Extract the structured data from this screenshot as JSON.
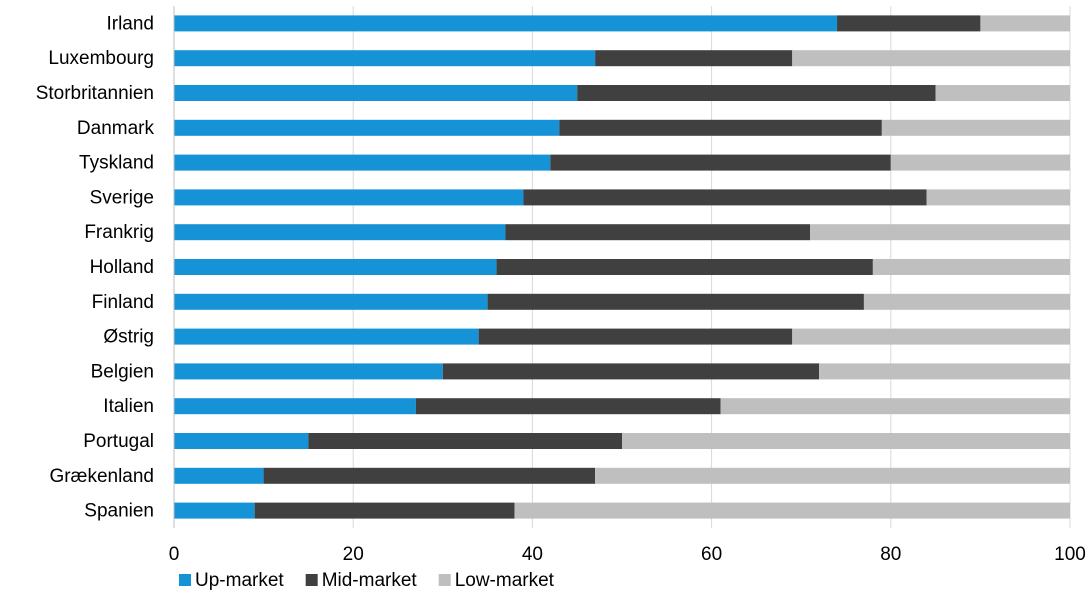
{
  "chart_data": {
    "type": "bar",
    "orientation": "horizontal",
    "stacked": true,
    "title": "",
    "xlabel": "",
    "ylabel": "",
    "xlim": [
      0,
      100
    ],
    "xticks": [
      0,
      20,
      40,
      60,
      80,
      100
    ],
    "grid": "vertical",
    "legend_position": "bottom",
    "categories": [
      "Irland",
      "Luxembourg",
      "Storbritannien",
      "Danmark",
      "Tyskland",
      "Sverige",
      "Frankrig",
      "Holland",
      "Finland",
      "Østrig",
      "Belgien",
      "Italien",
      "Portugal",
      "Grækenland",
      "Spanien"
    ],
    "series": [
      {
        "name": "Up-market",
        "color": "#1593d6",
        "values": [
          74,
          47,
          45,
          43,
          42,
          39,
          37,
          36,
          35,
          34,
          30,
          27,
          15,
          10,
          9
        ]
      },
      {
        "name": "Mid-market",
        "color": "#404040",
        "values": [
          16,
          22,
          40,
          36,
          38,
          45,
          34,
          42,
          42,
          35,
          42,
          34,
          35,
          37,
          29
        ]
      },
      {
        "name": "Low-market",
        "color": "#bfbfbf",
        "values": [
          10,
          31,
          15,
          21,
          20,
          16,
          29,
          22,
          23,
          31,
          28,
          39,
          50,
          53,
          62
        ]
      }
    ]
  }
}
